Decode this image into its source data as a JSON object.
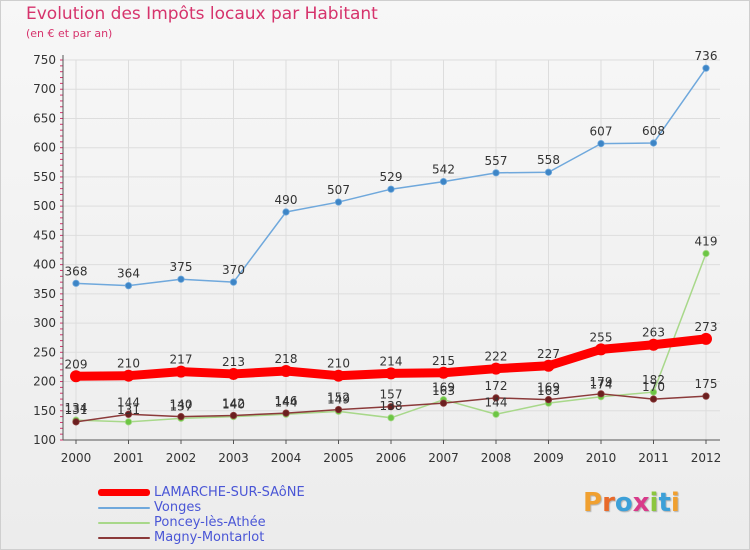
{
  "header": {
    "title": "Evolution des Impôts locaux par Habitant",
    "subtitle": "(en € et par an)"
  },
  "logo": {
    "text": "Proxiti",
    "letters": [
      {
        "ch": "P",
        "color": "#f0a030"
      },
      {
        "ch": "r",
        "color": "#e86a2a"
      },
      {
        "ch": "o",
        "color": "#3da0d8"
      },
      {
        "ch": "x",
        "color": "#d83a8a"
      },
      {
        "ch": "i",
        "color": "#8cc63f"
      },
      {
        "ch": "t",
        "color": "#3da0d8"
      },
      {
        "ch": "i",
        "color": "#f0a030"
      }
    ]
  },
  "chart_data": {
    "type": "line",
    "title": "Evolution des Impôts locaux par Habitant",
    "subtitle": "(en € et par an)",
    "xlabel": "",
    "ylabel": "",
    "x": [
      "2000",
      "2001",
      "2002",
      "2003",
      "2004",
      "2005",
      "2006",
      "2007",
      "2008",
      "2009",
      "2010",
      "2011",
      "2012"
    ],
    "ylim": [
      100,
      750
    ],
    "yticks": [
      100,
      150,
      200,
      250,
      300,
      350,
      400,
      450,
      500,
      550,
      600,
      650,
      700,
      750
    ],
    "grid": true,
    "legend_position": "bottom-left",
    "series": [
      {
        "name": "LAMARCHE-SUR-SAôNE",
        "color": "#ff0000",
        "values": [
          209,
          210,
          217,
          213,
          218,
          210,
          214,
          215,
          222,
          227,
          255,
          263,
          273
        ],
        "labels": [
          "209",
          "210",
          "217",
          "213",
          "218",
          "210",
          "214",
          "215",
          "222",
          "227",
          "255",
          "263",
          "273"
        ]
      },
      {
        "name": "Vonges",
        "color": "#6fa8dc",
        "point_color": "#3d85c6",
        "values": [
          368,
          364,
          375,
          370,
          490,
          507,
          529,
          542,
          557,
          558,
          607,
          608,
          736
        ],
        "labels": [
          "368",
          "364",
          "375",
          "370",
          "490",
          "507",
          "529",
          "542",
          "557",
          "558",
          "607",
          "608",
          "736"
        ]
      },
      {
        "name": "Poncey-lès-Athée",
        "color": "#a8d88a",
        "point_color": "#6cc644",
        "values": [
          134,
          131,
          137,
          140,
          144,
          149,
          138,
          169,
          144,
          163,
          174,
          182,
          419
        ],
        "labels": [
          "134",
          "131",
          "137",
          "140",
          "144",
          "149",
          "138",
          "169",
          "144",
          "163",
          "174",
          "182",
          "419"
        ]
      },
      {
        "name": "Magny-Montarlot",
        "color": "#8b3a3a",
        "point_color": "#6b1f1f",
        "values": [
          131,
          144,
          140,
          142,
          146,
          152,
          157,
          163,
          172,
          169,
          179,
          170,
          175
        ],
        "labels": [
          "131",
          "144",
          "140",
          "142",
          "146",
          "152",
          "157",
          "163",
          "172",
          "169",
          "179",
          "170",
          "175"
        ]
      }
    ]
  }
}
